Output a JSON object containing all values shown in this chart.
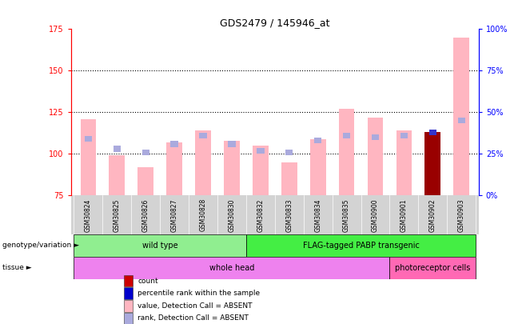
{
  "title": "GDS2479 / 145946_at",
  "samples": [
    "GSM30824",
    "GSM30825",
    "GSM30826",
    "GSM30827",
    "GSM30828",
    "GSM30830",
    "GSM30832",
    "GSM30833",
    "GSM30834",
    "GSM30835",
    "GSM30900",
    "GSM30901",
    "GSM30902",
    "GSM30903"
  ],
  "value_bars": [
    121,
    99,
    92,
    107,
    114,
    108,
    105,
    95,
    109,
    127,
    122,
    114,
    113,
    170
  ],
  "rank_dots": [
    109,
    103,
    101,
    106,
    111,
    106,
    102,
    101,
    108,
    111,
    110,
    111,
    113,
    120
  ],
  "count_bar_idx": 12,
  "ylim": [
    75,
    175
  ],
  "yticks_left": [
    75,
    100,
    125,
    150,
    175
  ],
  "right_ytick_vals": [
    0,
    25,
    50,
    75,
    100
  ],
  "dotted_lines": [
    100,
    125,
    150
  ],
  "genotype_groups": [
    {
      "label": "wild type",
      "start": 0,
      "end": 6,
      "color": "#90EE90"
    },
    {
      "label": "FLAG-tagged PABP transgenic",
      "start": 6,
      "end": 14,
      "color": "#44EE44"
    }
  ],
  "tissue_groups": [
    {
      "label": "whole head",
      "start": 0,
      "end": 11,
      "color": "#EE82EE"
    },
    {
      "label": "photoreceptor cells",
      "start": 11,
      "end": 14,
      "color": "#FF69B4"
    }
  ],
  "bar_color_value": "#FFB6C1",
  "bar_color_count": "#990000",
  "dot_color_rank_absent": "#AAAADD",
  "dot_color_pct": "#3333CC",
  "legend_items": [
    {
      "label": "count",
      "color": "#CC0000"
    },
    {
      "label": "percentile rank within the sample",
      "color": "#0000CC"
    },
    {
      "label": "value, Detection Call = ABSENT",
      "color": "#FFB6C1"
    },
    {
      "label": "rank, Detection Call = ABSENT",
      "color": "#AAAADD"
    }
  ],
  "genotype_label": "genotype/variation",
  "tissue_label": "tissue",
  "background_color": "#FFFFFF",
  "xtick_bg": "#D3D3D3"
}
